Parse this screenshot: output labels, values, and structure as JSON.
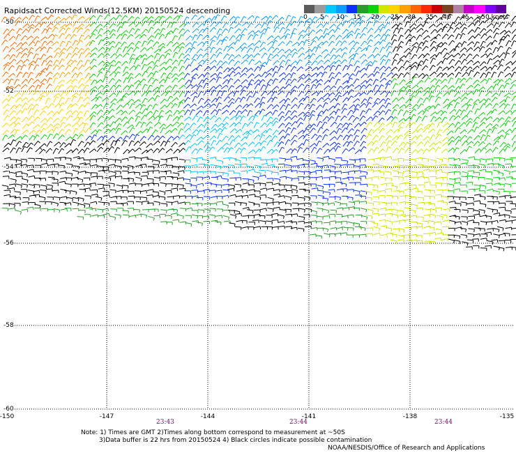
{
  "title": "Rapidsact Corrected Winds(12.5KM) 20150524 descending",
  "legend": {
    "labels": [
      "0",
      "5",
      "10",
      "15",
      "20",
      "25",
      "30",
      "35",
      "40",
      "45",
      ">50 knots"
    ],
    "colors": [
      "#5a5a5a",
      "#9a9a9a",
      "#00c8ff",
      "#0a9cff",
      "#0a30ff",
      "#2a9c2a",
      "#0ad20a",
      "#d2e600",
      "#ffd200",
      "#ffa000",
      "#ff6400",
      "#ff2800",
      "#c80000",
      "#7a4020",
      "#b080a0",
      "#c800c8",
      "#ff00ff",
      "#8000ff",
      "#6000a0"
    ]
  },
  "lat_labels": [
    "-50",
    "-52",
    "-54",
    "-56",
    "-58",
    "-60"
  ],
  "lon_labels": [
    "-150",
    "-147",
    "-144",
    "-141",
    "-138",
    "-135"
  ],
  "times": [
    "23:43",
    "23:44",
    "23:44"
  ],
  "notes": {
    "line1": "Note: 1) Times are GMT 2)Times along bottom correspond to measurement at ~50S",
    "line2": "3)Data buffer is 22 hrs from 20150524 4) Black circles indicate possible contamination",
    "line3": "NOAA/NESDIS/Office of Research and Applications"
  }
}
